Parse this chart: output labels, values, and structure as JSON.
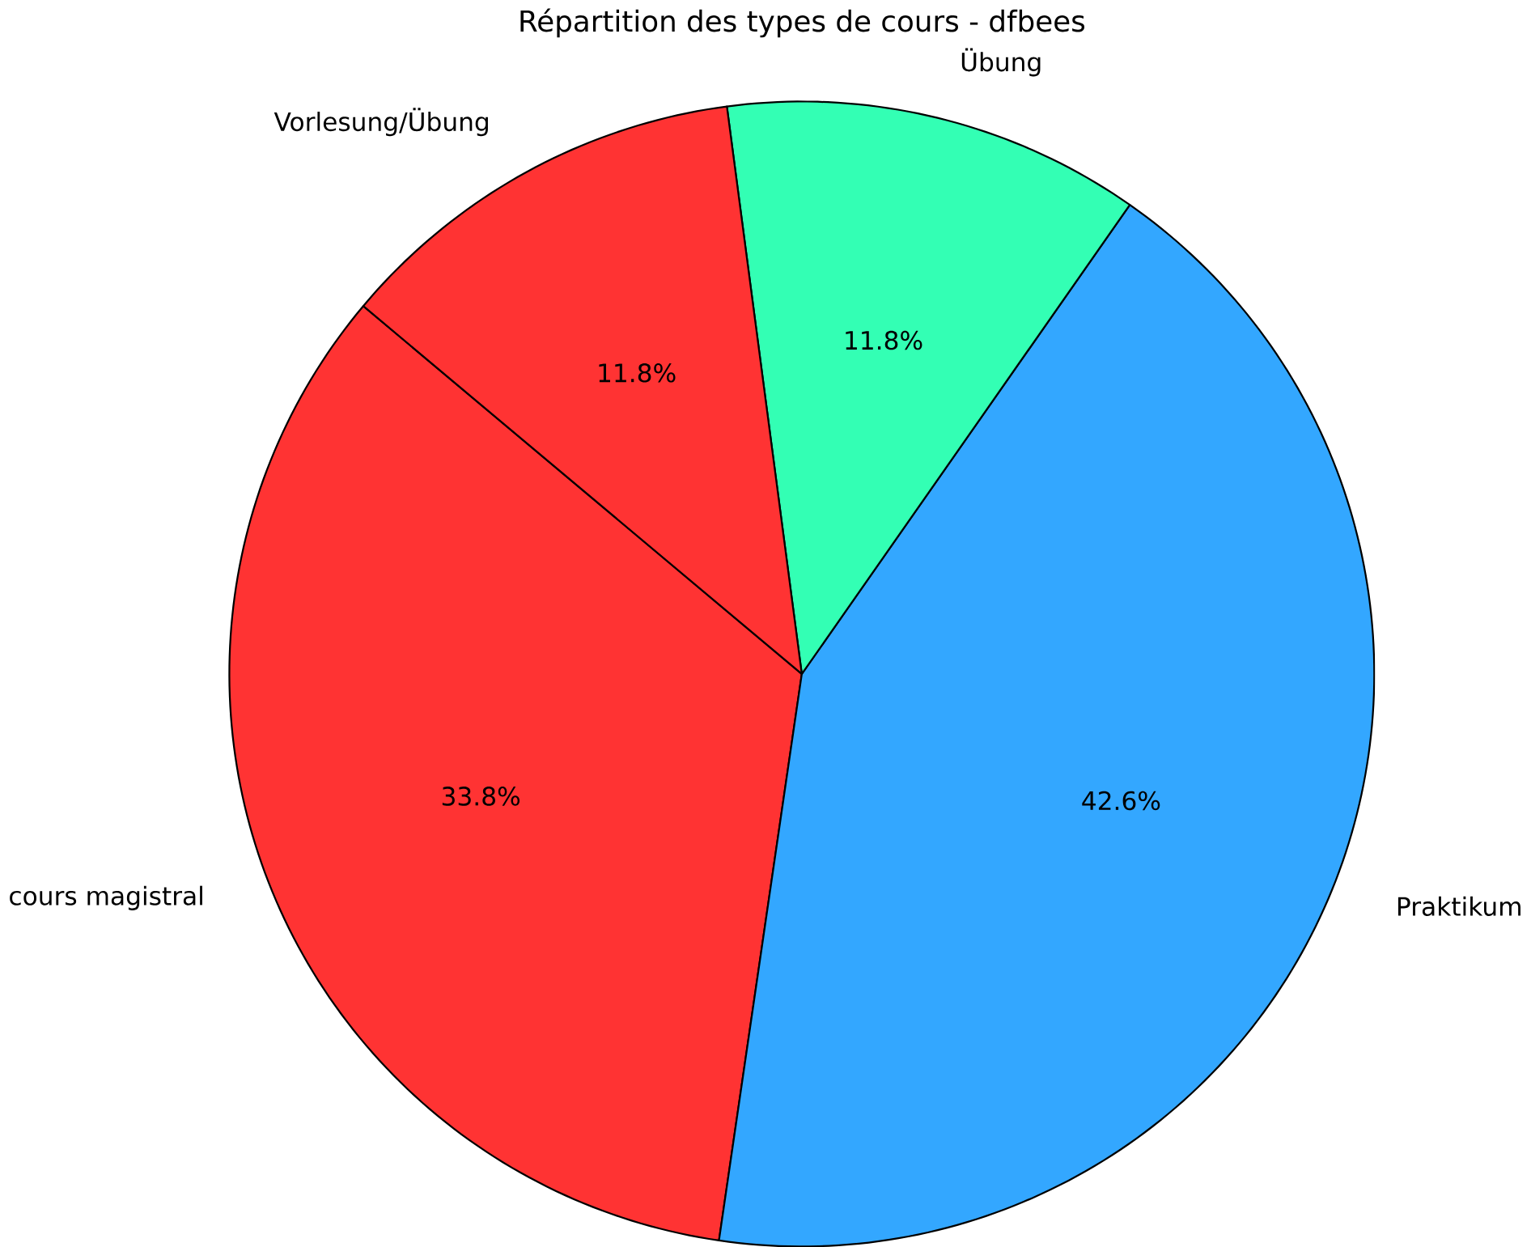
{
  "chart_data": {
    "type": "pie",
    "title": "Répartition des types de cours - dfbees",
    "categories": [
      "cours magistral",
      "Praktikum",
      "Übung",
      "Vorlesung/Übung"
    ],
    "values": [
      33.8,
      42.6,
      11.8,
      11.8
    ],
    "value_labels": [
      "33.8%",
      "42.6%",
      "11.8%",
      "11.8%"
    ],
    "colors": [
      "#ff3333",
      "#33a7ff",
      "#33ffb4",
      "#ff3333"
    ]
  }
}
